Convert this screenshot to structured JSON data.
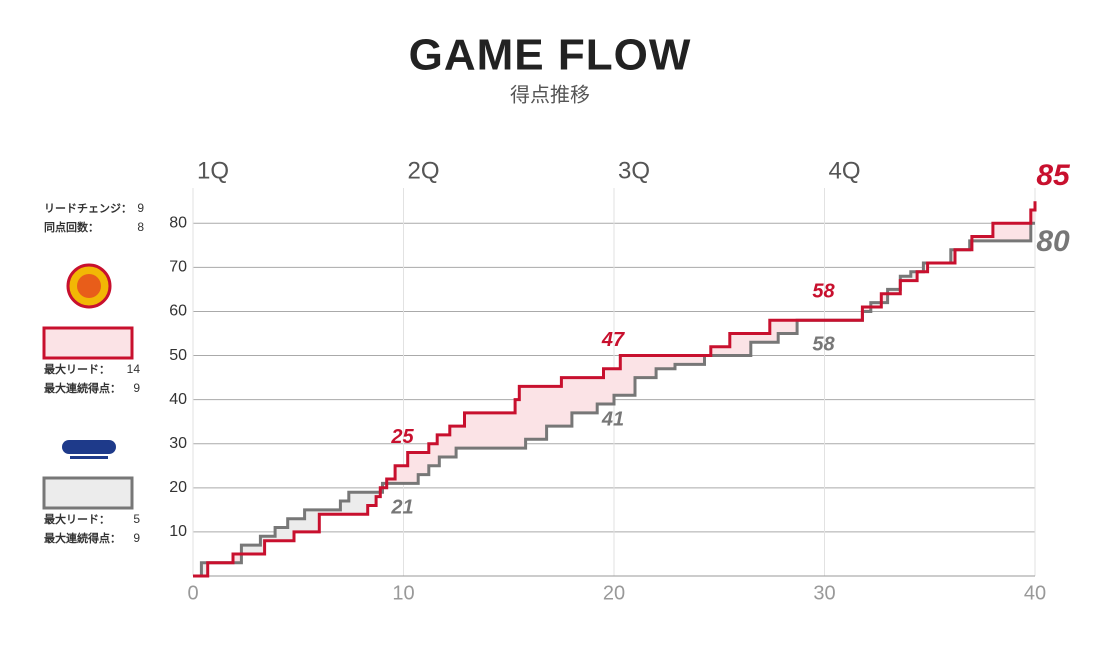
{
  "chart_data": {
    "type": "step",
    "title": "GAME FLOW",
    "subtitle": "得点推移",
    "xlim": [
      0,
      40
    ],
    "xticks": [
      0,
      10,
      20,
      30,
      40
    ],
    "quarters": [
      {
        "value": 0,
        "label": "1Q"
      },
      {
        "value": 10,
        "label": "2Q"
      },
      {
        "value": 20,
        "label": "3Q"
      },
      {
        "value": 30,
        "label": "4Q"
      }
    ],
    "ylim": [
      0,
      88
    ],
    "yticks": [
      10,
      20,
      30,
      40,
      50,
      60,
      70,
      80
    ],
    "grid": true,
    "game_stats": [
      {
        "label": "リードチェンジ：",
        "value": 9
      },
      {
        "label": "同点回数：",
        "value": 8
      }
    ],
    "series": [
      {
        "color": "#c8102e",
        "fill": "#fbe3e6",
        "times": [
          0.7,
          1.9,
          3.4,
          4.8,
          6.0,
          8.3,
          8.7,
          8.9,
          9.2,
          9.6,
          10.2,
          11.2,
          11.6,
          12.2,
          12.9,
          15.3,
          15.5,
          17.5,
          19.5,
          20.3,
          24.6,
          25.5,
          27.4,
          31.8,
          32.7,
          33.6,
          34.4,
          34.9,
          36.2,
          37.0,
          38.0,
          39.8,
          40.0
        ],
        "scores": [
          3,
          5,
          8,
          10,
          14,
          16,
          18,
          20,
          22,
          25,
          28,
          30,
          32,
          34,
          37,
          40,
          43,
          45,
          47,
          50,
          52,
          55,
          58,
          61,
          64,
          67,
          69,
          71,
          74,
          77,
          80,
          83,
          85
        ],
        "quarter_scores": [
          25,
          47,
          58,
          85
        ],
        "stats": [
          {
            "label": "最大リード：",
            "value": 14
          },
          {
            "label": "最大連続得点：",
            "value": 9
          }
        ]
      },
      {
        "color": "#777777",
        "fill": "#ececec",
        "times": [
          0.4,
          2.3,
          3.2,
          3.9,
          4.5,
          5.3,
          7.0,
          7.4,
          9.0,
          10.7,
          11.2,
          11.7,
          12.5,
          15.8,
          16.8,
          18.0,
          19.2,
          20.0,
          21.0,
          22.0,
          22.9,
          24.3,
          26.5,
          27.8,
          28.7,
          31.8,
          32.2,
          33.0,
          33.6,
          34.1,
          34.7,
          36.0,
          36.9,
          39.8
        ],
        "scores": [
          3,
          7,
          9,
          11,
          13,
          15,
          17,
          19,
          21,
          23,
          25,
          27,
          29,
          31,
          34,
          37,
          39,
          41,
          45,
          47,
          48,
          50,
          53,
          55,
          58,
          60,
          62,
          65,
          68,
          69,
          71,
          74,
          76,
          80
        ],
        "quarter_scores": [
          21,
          41,
          58,
          80
        ],
        "stats": [
          {
            "label": "最大リード：",
            "value": 5
          },
          {
            "label": "最大連続得点：",
            "value": 9
          }
        ]
      }
    ]
  }
}
